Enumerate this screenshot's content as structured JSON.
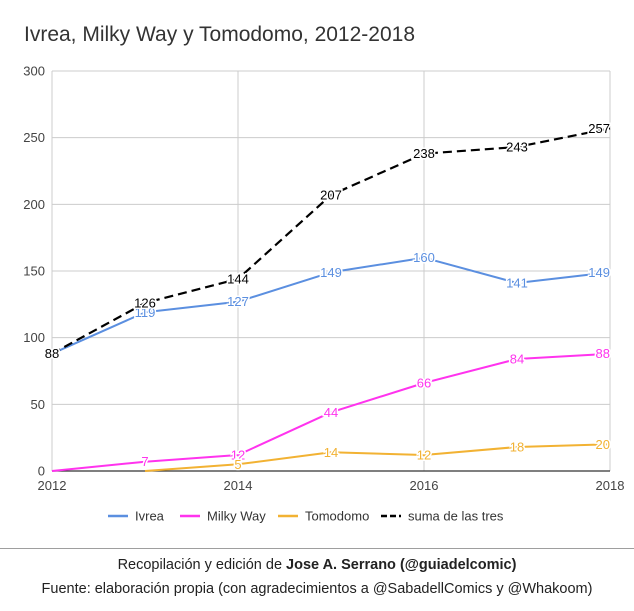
{
  "chart_data": {
    "type": "line",
    "title": "Ivrea, Milky Way y Tomodomo, 2012-2018",
    "xlabel": "",
    "ylabel": "",
    "x": [
      2012,
      2013,
      2014,
      2015,
      2016,
      2017,
      2018
    ],
    "x_ticks": [
      "2012",
      "2014",
      "2016",
      "2018"
    ],
    "y_ticks": [
      "0",
      "50",
      "100",
      "150",
      "200",
      "250",
      "300"
    ],
    "xlim": [
      2012,
      2018
    ],
    "ylim": [
      0,
      300
    ],
    "grid": true,
    "legend_position": "bottom",
    "series": [
      {
        "name": "Ivrea",
        "color": "#5b8fe0",
        "dashed": false,
        "values": [
          88,
          119,
          127,
          149,
          160,
          141,
          149
        ]
      },
      {
        "name": "Milky Way",
        "color": "#ff33ee",
        "dashed": false,
        "values": [
          0,
          7,
          12,
          44,
          66,
          84,
          88
        ],
        "labeled": [
          false,
          true,
          true,
          true,
          true,
          true,
          true
        ]
      },
      {
        "name": "Tomodomo",
        "color": "#f2b233",
        "dashed": false,
        "x": [
          2013,
          2014,
          2015,
          2016,
          2017,
          2018
        ],
        "values": [
          0,
          5,
          14,
          12,
          18,
          20
        ],
        "labeled": [
          false,
          true,
          true,
          true,
          true,
          true
        ]
      },
      {
        "name": "suma de las tres",
        "color": "#000000",
        "dashed": true,
        "values": [
          88,
          126,
          144,
          207,
          238,
          243,
          257
        ]
      }
    ]
  },
  "footer": {
    "line1_prefix": "Recopilación y edición de ",
    "line1_bold": "Jose A. Serrano (@guiadelcomic)",
    "line2": "Fuente: elaboración propia (con agradecimientos a @SabadellComics y @Whakoom)"
  }
}
